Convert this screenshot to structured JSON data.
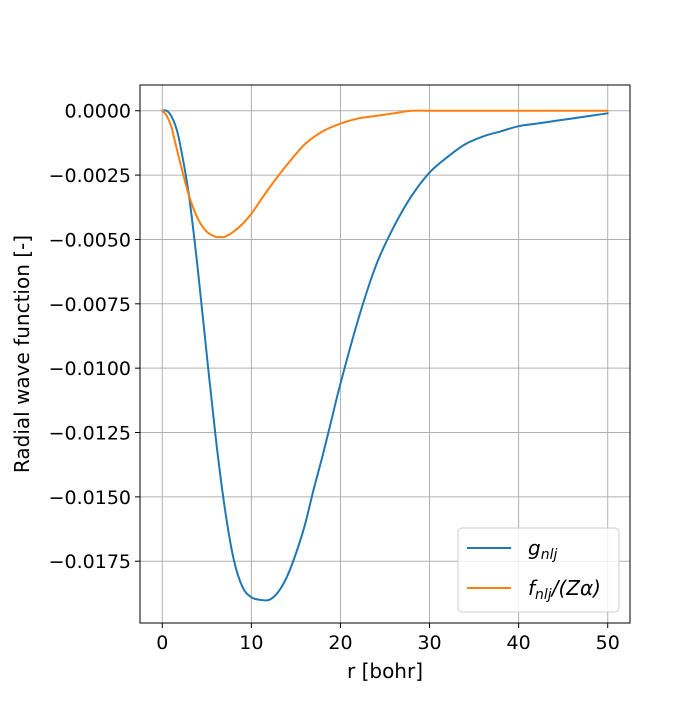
{
  "chart_data": {
    "type": "line",
    "xlabel": "r [bohr]",
    "ylabel": "Radial wave function [-]",
    "xlim": [
      -2.5,
      52.5
    ],
    "ylim": [
      -0.0199,
      0.001
    ],
    "xticks": [
      0,
      10,
      20,
      30,
      40,
      50
    ],
    "xtick_labels": [
      "0",
      "10",
      "20",
      "30",
      "40",
      "50"
    ],
    "yticks": [
      0.0,
      -0.0025,
      -0.005,
      -0.0075,
      -0.01,
      -0.0125,
      -0.015,
      -0.0175
    ],
    "ytick_labels": [
      "0.0000",
      "−0.0025",
      "−0.0050",
      "−0.0075",
      "−0.0100",
      "−0.0125",
      "−0.0150",
      "−0.0175"
    ],
    "grid": true,
    "legend_position": "lower-right",
    "series": [
      {
        "name": "g_nlj",
        "legend_main": "g",
        "legend_sub": "nlj",
        "legend_suffix": "",
        "color": "#1f77b4",
        "x": [
          0,
          0.5,
          1,
          1.5,
          2,
          3,
          4,
          5,
          6,
          7,
          8,
          9,
          10,
          11,
          12,
          13,
          14,
          15,
          16,
          17,
          18,
          19,
          20,
          22,
          24,
          26,
          28,
          30,
          32,
          34,
          36,
          38,
          40,
          42,
          44,
          46,
          48,
          50
        ],
        "y": [
          0.0,
          0.0,
          -0.0002,
          -0.0006,
          -0.0013,
          -0.0033,
          -0.0062,
          -0.0095,
          -0.0127,
          -0.0154,
          -0.0174,
          -0.0185,
          -0.0189,
          -0.019,
          -0.019,
          -0.0187,
          -0.0181,
          -0.0172,
          -0.0161,
          -0.0147,
          -0.0134,
          -0.012,
          -0.0106,
          -0.0081,
          -0.006,
          -0.0045,
          -0.0033,
          -0.0024,
          -0.0018,
          -0.0013,
          -0.001,
          -0.0008,
          -0.0006,
          -0.0005,
          -0.0004,
          -0.0003,
          -0.0002,
          -0.0001
        ]
      },
      {
        "name": "f_nlj/(Zα)",
        "legend_main": "f",
        "legend_sub": "nlj",
        "legend_suffix": "/(Zα)",
        "color": "#ff7f0e",
        "x": [
          0,
          0.5,
          1,
          1.5,
          2,
          3,
          4,
          5,
          6,
          6.5,
          7,
          8,
          9,
          10,
          11,
          12,
          14,
          16,
          18,
          20,
          22,
          24,
          26,
          28,
          30,
          33,
          36,
          40,
          45,
          50
        ],
        "y": [
          0.0,
          -0.0002,
          -0.0006,
          -0.0013,
          -0.002,
          -0.0033,
          -0.0042,
          -0.0047,
          -0.0049,
          -0.0049,
          -0.0049,
          -0.0047,
          -0.0044,
          -0.004,
          -0.0035,
          -0.003,
          -0.0021,
          -0.0013,
          -0.0008,
          -0.0005,
          -0.0003,
          -0.0002,
          -0.0001,
          0.0,
          0.0,
          0.0,
          0.0,
          0.0,
          0.0,
          0.0
        ]
      }
    ]
  }
}
